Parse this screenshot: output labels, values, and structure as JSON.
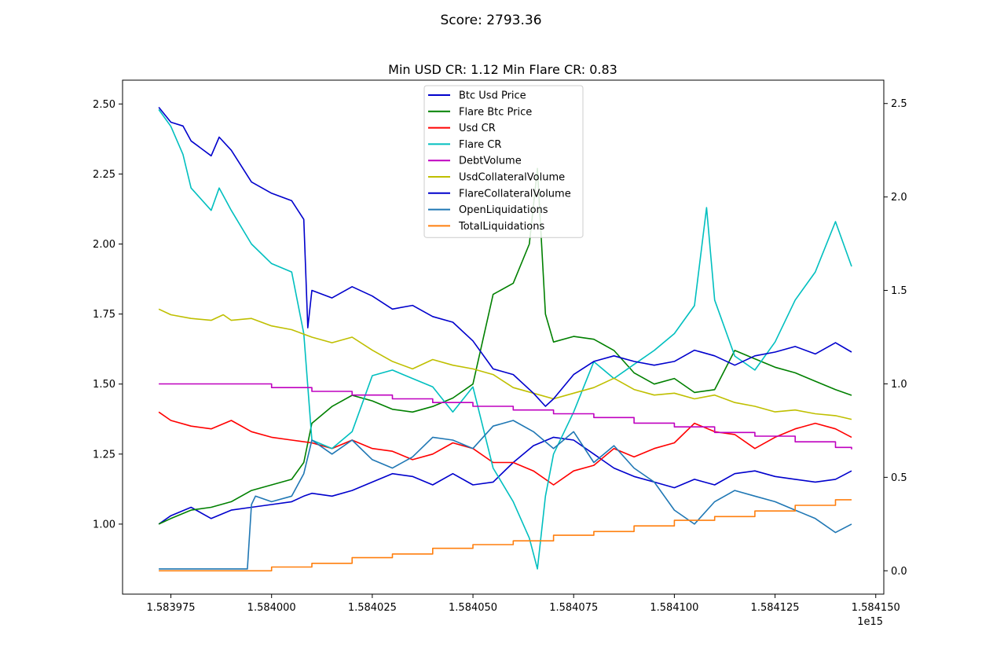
{
  "chart_data": {
    "type": "line",
    "suptitle": "Score: 2793.36",
    "title": "Min USD CR: 1.12 Min Flare CR: 0.83",
    "x_offset_label": "1e15",
    "x_ticks": [
      "1.583975",
      "1.584000",
      "1.584025",
      "1.584050",
      "1.584075",
      "1.584100",
      "1.584125",
      "1.584150"
    ],
    "x_tick_values": [
      1.583975,
      1.584,
      1.584025,
      1.58405,
      1.584075,
      1.5841,
      1.584125,
      1.58415
    ],
    "xlim": [
      1.583963,
      1.584152
    ],
    "y_left": {
      "ticks": [
        "1.00",
        "1.25",
        "1.50",
        "1.75",
        "2.00",
        "2.25",
        "2.50"
      ],
      "tick_values": [
        1.0,
        1.25,
        1.5,
        1.75,
        2.0,
        2.25,
        2.5
      ],
      "ylim": [
        0.75,
        2.585
      ]
    },
    "y_right": {
      "ticks": [
        "0.0",
        "0.5",
        "1.0",
        "1.5",
        "2.0",
        "2.5"
      ],
      "tick_values": [
        0,
        0.5,
        1.0,
        1.5,
        2.0,
        2.5
      ],
      "ylim": [
        -0.125,
        2.625
      ]
    },
    "legend_position": "upper center",
    "grid": false,
    "series": [
      {
        "name": "Btc Usd Price",
        "color": "#0000cc",
        "axis": "left",
        "x": [
          1.583972,
          1.583975,
          1.58398,
          1.583985,
          1.58399,
          1.583995,
          1.584,
          1.584005,
          1.584008,
          1.58401,
          1.584015,
          1.58402,
          1.584025,
          1.58403,
          1.584035,
          1.58404,
          1.584045,
          1.58405,
          1.584055,
          1.58406,
          1.584065,
          1.58407,
          1.584075,
          1.58408,
          1.584085,
          1.58409,
          1.584095,
          1.5841,
          1.584105,
          1.58411,
          1.584115,
          1.58412,
          1.584125,
          1.58413,
          1.584135,
          1.58414,
          1.584144
        ],
        "y": [
          1.0,
          1.03,
          1.06,
          1.02,
          1.05,
          1.06,
          1.07,
          1.08,
          1.1,
          1.11,
          1.1,
          1.12,
          1.15,
          1.18,
          1.17,
          1.14,
          1.18,
          1.14,
          1.15,
          1.22,
          1.28,
          1.31,
          1.3,
          1.25,
          1.2,
          1.17,
          1.15,
          1.13,
          1.16,
          1.14,
          1.18,
          1.19,
          1.17,
          1.16,
          1.15,
          1.16,
          1.19
        ]
      },
      {
        "name": "Flare Btc Price",
        "color": "#008000",
        "axis": "left",
        "x": [
          1.583972,
          1.583975,
          1.58398,
          1.583985,
          1.58399,
          1.583995,
          1.584,
          1.584005,
          1.584008,
          1.58401,
          1.584015,
          1.58402,
          1.584025,
          1.58403,
          1.584035,
          1.58404,
          1.584045,
          1.58405,
          1.584055,
          1.58406,
          1.584064,
          1.584066,
          1.584068,
          1.58407,
          1.584075,
          1.58408,
          1.584085,
          1.58409,
          1.584095,
          1.5841,
          1.584105,
          1.58411,
          1.584115,
          1.58412,
          1.584125,
          1.58413,
          1.584135,
          1.58414,
          1.584144
        ],
        "y": [
          1.0,
          1.02,
          1.05,
          1.06,
          1.08,
          1.12,
          1.14,
          1.16,
          1.22,
          1.36,
          1.42,
          1.46,
          1.44,
          1.41,
          1.4,
          1.42,
          1.45,
          1.5,
          1.82,
          1.86,
          2.0,
          2.27,
          1.75,
          1.65,
          1.67,
          1.66,
          1.62,
          1.54,
          1.5,
          1.52,
          1.47,
          1.48,
          1.62,
          1.59,
          1.56,
          1.54,
          1.51,
          1.48,
          1.46
        ]
      },
      {
        "name": "Usd CR",
        "color": "#ff0000",
        "axis": "left",
        "x": [
          1.583972,
          1.583975,
          1.58398,
          1.583985,
          1.58399,
          1.583995,
          1.584,
          1.584005,
          1.58401,
          1.584015,
          1.58402,
          1.584025,
          1.58403,
          1.584035,
          1.58404,
          1.584045,
          1.58405,
          1.584055,
          1.58406,
          1.584065,
          1.58407,
          1.584075,
          1.58408,
          1.584085,
          1.58409,
          1.584095,
          1.5841,
          1.584105,
          1.58411,
          1.584115,
          1.58412,
          1.584125,
          1.58413,
          1.584135,
          1.58414,
          1.584144
        ],
        "y": [
          1.4,
          1.37,
          1.35,
          1.34,
          1.37,
          1.33,
          1.31,
          1.3,
          1.29,
          1.27,
          1.3,
          1.27,
          1.26,
          1.23,
          1.25,
          1.29,
          1.27,
          1.22,
          1.22,
          1.19,
          1.14,
          1.19,
          1.21,
          1.27,
          1.24,
          1.27,
          1.29,
          1.36,
          1.33,
          1.32,
          1.27,
          1.31,
          1.34,
          1.36,
          1.34,
          1.31
        ]
      },
      {
        "name": "Flare CR",
        "color": "#00bfbf",
        "axis": "left",
        "x": [
          1.583972,
          1.583975,
          1.583978,
          1.58398,
          1.583985,
          1.583987,
          1.58399,
          1.583995,
          1.584,
          1.584005,
          1.584008,
          1.58401,
          1.584015,
          1.58402,
          1.584025,
          1.58403,
          1.584035,
          1.58404,
          1.584045,
          1.58405,
          1.584055,
          1.58406,
          1.584064,
          1.584066,
          1.584068,
          1.58407,
          1.584075,
          1.58408,
          1.584085,
          1.58409,
          1.584095,
          1.5841,
          1.584105,
          1.584108,
          1.58411,
          1.584115,
          1.58412,
          1.584125,
          1.58413,
          1.584135,
          1.58414,
          1.584144
        ],
        "y": [
          2.48,
          2.42,
          2.32,
          2.2,
          2.12,
          2.2,
          2.12,
          2.0,
          1.93,
          1.9,
          1.68,
          1.3,
          1.27,
          1.33,
          1.53,
          1.55,
          1.52,
          1.49,
          1.4,
          1.49,
          1.2,
          1.08,
          0.95,
          0.84,
          1.1,
          1.25,
          1.4,
          1.58,
          1.52,
          1.57,
          1.62,
          1.68,
          1.78,
          2.13,
          1.8,
          1.6,
          1.55,
          1.65,
          1.8,
          1.9,
          2.08,
          1.92
        ]
      },
      {
        "name": "DebtVolume",
        "color": "#bf00bf",
        "axis": "right",
        "x": [
          1.583972,
          1.583995,
          1.584,
          1.58401,
          1.58402,
          1.58403,
          1.58404,
          1.58405,
          1.58406,
          1.58407,
          1.58408,
          1.58409,
          1.5841,
          1.58411,
          1.58412,
          1.58413,
          1.58414,
          1.584144
        ],
        "y": [
          1.0,
          1.0,
          0.98,
          0.96,
          0.94,
          0.92,
          0.9,
          0.88,
          0.86,
          0.84,
          0.82,
          0.79,
          0.77,
          0.74,
          0.72,
          0.69,
          0.66,
          0.65
        ]
      },
      {
        "name": "UsdCollateralVolume",
        "color": "#bfbf00",
        "axis": "right",
        "x": [
          1.583972,
          1.583975,
          1.58398,
          1.583985,
          1.583988,
          1.58399,
          1.583995,
          1.584,
          1.584005,
          1.58401,
          1.584015,
          1.58402,
          1.584025,
          1.58403,
          1.584035,
          1.58404,
          1.584045,
          1.58405,
          1.584055,
          1.58406,
          1.584065,
          1.58407,
          1.584075,
          1.58408,
          1.584085,
          1.58409,
          1.584095,
          1.5841,
          1.584105,
          1.58411,
          1.584115,
          1.58412,
          1.584125,
          1.58413,
          1.584135,
          1.58414,
          1.584144
        ],
        "y": [
          1.4,
          1.37,
          1.35,
          1.34,
          1.37,
          1.34,
          1.35,
          1.31,
          1.29,
          1.25,
          1.22,
          1.25,
          1.18,
          1.12,
          1.08,
          1.13,
          1.1,
          1.08,
          1.05,
          0.98,
          0.95,
          0.92,
          0.95,
          0.98,
          1.03,
          0.97,
          0.94,
          0.95,
          0.92,
          0.94,
          0.9,
          0.88,
          0.85,
          0.86,
          0.84,
          0.83,
          0.81
        ]
      },
      {
        "name": "FlareCollateralVolume",
        "color": "#0000cc",
        "axis": "right",
        "x": [
          1.583972,
          1.583975,
          1.583978,
          1.58398,
          1.583985,
          1.583987,
          1.58399,
          1.583995,
          1.584,
          1.584005,
          1.584008,
          1.584009,
          1.58401,
          1.584015,
          1.58402,
          1.584025,
          1.58403,
          1.584035,
          1.58404,
          1.584045,
          1.58405,
          1.584055,
          1.58406,
          1.584065,
          1.584068,
          1.58407,
          1.584075,
          1.58408,
          1.584085,
          1.58409,
          1.584095,
          1.5841,
          1.584105,
          1.58411,
          1.584115,
          1.58412,
          1.584125,
          1.58413,
          1.584135,
          1.58414,
          1.584144
        ],
        "y": [
          2.48,
          2.4,
          2.38,
          2.3,
          2.22,
          2.32,
          2.25,
          2.08,
          2.02,
          1.98,
          1.88,
          1.3,
          1.5,
          1.46,
          1.52,
          1.47,
          1.4,
          1.42,
          1.36,
          1.33,
          1.23,
          1.08,
          1.05,
          0.95,
          0.88,
          0.92,
          1.05,
          1.12,
          1.15,
          1.12,
          1.1,
          1.12,
          1.18,
          1.15,
          1.1,
          1.15,
          1.17,
          1.2,
          1.16,
          1.22,
          1.17
        ]
      },
      {
        "name": "OpenLiquidations",
        "color": "#1f77b4",
        "axis": "left",
        "x": [
          1.583972,
          1.583994,
          1.583995,
          1.583996,
          1.584,
          1.584005,
          1.584008,
          1.58401,
          1.584015,
          1.58402,
          1.584025,
          1.58403,
          1.584035,
          1.58404,
          1.584045,
          1.58405,
          1.584055,
          1.58406,
          1.584065,
          1.58407,
          1.584075,
          1.58408,
          1.584085,
          1.58409,
          1.584095,
          1.5841,
          1.584105,
          1.58411,
          1.584115,
          1.58412,
          1.584125,
          1.58413,
          1.584135,
          1.58414,
          1.584144
        ],
        "y": [
          0.84,
          0.84,
          1.07,
          1.1,
          1.08,
          1.1,
          1.18,
          1.3,
          1.25,
          1.3,
          1.23,
          1.2,
          1.24,
          1.31,
          1.3,
          1.27,
          1.35,
          1.37,
          1.33,
          1.27,
          1.33,
          1.22,
          1.28,
          1.2,
          1.15,
          1.05,
          1.0,
          1.08,
          1.12,
          1.1,
          1.08,
          1.05,
          1.02,
          0.97,
          1.0
        ]
      },
      {
        "name": "TotalLiquidations",
        "color": "#ff7f0e",
        "axis": "right",
        "x": [
          1.583972,
          1.583995,
          1.584,
          1.58401,
          1.58402,
          1.58403,
          1.58404,
          1.58405,
          1.58406,
          1.58407,
          1.58408,
          1.58409,
          1.5841,
          1.58411,
          1.58412,
          1.58413,
          1.58414,
          1.584144
        ],
        "y": [
          0.0,
          0.0,
          0.02,
          0.04,
          0.07,
          0.09,
          0.12,
          0.14,
          0.16,
          0.19,
          0.21,
          0.24,
          0.27,
          0.29,
          0.32,
          0.35,
          0.38,
          0.38
        ]
      }
    ]
  }
}
